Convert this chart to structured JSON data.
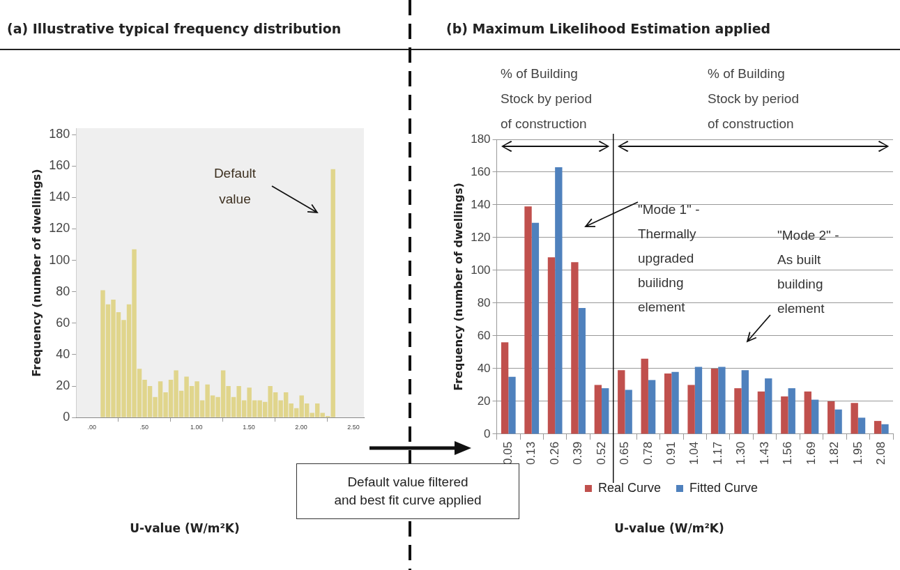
{
  "chart_data": [
    {
      "type": "histogram",
      "title": "(a) Illustrative typical frequency distribution",
      "xlabel": "U-value (W/m²K)",
      "ylabel": "Frequency (number of dwellings)",
      "bins": [
        0.08,
        0.13,
        0.18,
        0.23,
        0.28,
        0.33,
        0.38,
        0.43,
        0.48,
        0.53,
        0.58,
        0.63,
        0.68,
        0.73,
        0.78,
        0.83,
        0.88,
        0.93,
        0.98,
        1.03,
        1.08,
        1.13,
        1.18,
        1.23,
        1.28,
        1.33,
        1.38,
        1.43,
        1.48,
        1.53,
        1.58,
        1.63,
        1.68,
        1.73,
        1.78,
        1.83,
        1.88,
        1.93,
        1.98,
        2.03,
        2.08,
        2.13,
        2.18,
        2.23,
        2.28,
        2.33
      ],
      "values": [
        81,
        72,
        75,
        67,
        62,
        72,
        107,
        31,
        24,
        20,
        13,
        23,
        16,
        24,
        30,
        17,
        26,
        20,
        23,
        11,
        21,
        14,
        13,
        30,
        20,
        13,
        20,
        11,
        19,
        11,
        11,
        10,
        20,
        16,
        11,
        16,
        9,
        6,
        14,
        9,
        3,
        9,
        3,
        1,
        158
      ],
      "color": "#e0d58c",
      "xlim": [
        -0.15,
        2.6
      ],
      "xticks": [
        {
          "value": 0,
          "label": ".00"
        },
        {
          "value": 0.5,
          "label": ".50"
        },
        {
          "value": 1,
          "label": "1.00"
        },
        {
          "value": 1.5,
          "label": "1.50"
        },
        {
          "value": 2,
          "label": "2.00"
        },
        {
          "value": 2.5,
          "label": "2.50"
        }
      ],
      "ylim": [
        0,
        184
      ],
      "yticks": [
        0,
        20,
        40,
        60,
        80,
        100,
        120,
        140,
        160,
        180
      ],
      "grid": false,
      "legend": false,
      "annotations": [
        "Default\nvalue"
      ]
    },
    {
      "type": "bar",
      "title": "(b)   Maximum Likelihood Estimation applied",
      "xlabel": "U-value (W/m²K)",
      "ylabel": "Frequency (number of dwellings)",
      "categories": [
        "0.05",
        "0.13",
        "0.26",
        "0.39",
        "0.52",
        "0.65",
        "0.78",
        "0.91",
        "1.04",
        "1.17",
        "1.30",
        "1.43",
        "1.56",
        "1.69",
        "1.82",
        "1.95",
        "2.08"
      ],
      "series": [
        {
          "name": "Real Curve",
          "color": "#c0504d",
          "values": [
            56,
            139,
            108,
            105,
            30,
            39,
            46,
            37,
            30,
            40,
            28,
            26,
            23,
            26,
            20,
            19,
            8
          ]
        },
        {
          "name": "Fitted Curve",
          "color": "#4f81bd",
          "values": [
            35,
            129,
            163,
            77,
            28,
            27,
            33,
            38,
            41,
            41,
            39,
            34,
            28,
            21,
            15,
            10,
            6
          ]
        }
      ],
      "ylim": [
        0,
        180
      ],
      "yticks": [
        0,
        20,
        40,
        60,
        80,
        100,
        120,
        140,
        160,
        180
      ],
      "grid": "y",
      "legend": "bottom",
      "ref_lines": [
        {
          "axis": "x",
          "value": "0.52",
          "color": "#111111"
        }
      ],
      "annotations": [
        "% of Building\nStock by period\nof construction",
        "% of Building\nStock by period\nof construction",
        "\"Mode 1\" -\nThermally\nupgraded\nbuilidng\nelement",
        "\"Mode 2\" -\nAs built\nbuilding\nelement",
        "Default value filtered\nand best fit curve applied"
      ]
    }
  ]
}
